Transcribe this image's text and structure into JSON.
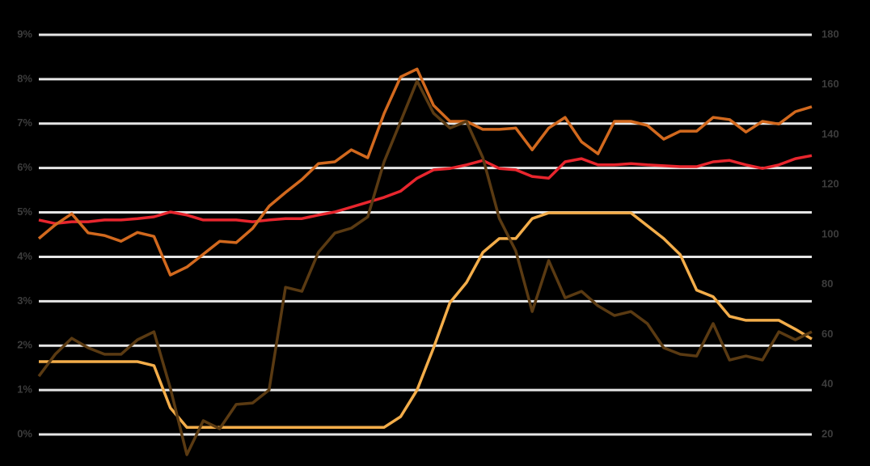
{
  "chart_data": {
    "type": "line",
    "ylim": [
      0,
      9
    ],
    "yticks": [
      {
        "value": 0,
        "label": "0%"
      },
      {
        "value": 1,
        "label": "1%"
      },
      {
        "value": 2,
        "label": "2%"
      },
      {
        "value": 3,
        "label": "3%"
      },
      {
        "value": 4,
        "label": "4%"
      },
      {
        "value": 5,
        "label": "5%"
      },
      {
        "value": 6,
        "label": "6%"
      },
      {
        "value": 7,
        "label": "7%"
      },
      {
        "value": 8,
        "label": "8%"
      },
      {
        "value": 9,
        "label": "9%"
      }
    ],
    "y2lim": [
      20,
      180
    ],
    "y2ticks": [
      20,
      40,
      60,
      80,
      100,
      120,
      140,
      160,
      180
    ],
    "grid": true,
    "series": [
      {
        "color": "#e8262e",
        "values": [
          4.83,
          4.75,
          4.79,
          4.79,
          4.83,
          4.83,
          4.86,
          4.9,
          5.01,
          4.94,
          4.83,
          4.83,
          4.83,
          4.79,
          4.83,
          4.86,
          4.86,
          4.94,
          5.01,
          5.12,
          5.23,
          5.34,
          5.48,
          5.77,
          5.96,
          5.99,
          6.07,
          6.17,
          5.99,
          5.96,
          5.81,
          5.77,
          6.14,
          6.21,
          6.07,
          6.07,
          6.1,
          6.07,
          6.05,
          6.03,
          6.03,
          6.14,
          6.17,
          6.07,
          5.99,
          6.07,
          6.21,
          6.28
        ]
      },
      {
        "color": "#d2691e",
        "values": [
          4.41,
          4.72,
          4.97,
          4.54,
          4.48,
          4.35,
          4.55,
          4.46,
          3.59,
          3.77,
          4.06,
          4.35,
          4.32,
          4.64,
          5.14,
          5.45,
          5.74,
          6.1,
          6.14,
          6.41,
          6.23,
          7.23,
          8.05,
          8.23,
          7.41,
          7.05,
          7.05,
          6.87,
          6.87,
          6.9,
          6.41,
          6.9,
          7.14,
          6.59,
          6.32,
          7.05,
          7.05,
          6.96,
          6.65,
          6.83,
          6.83,
          7.14,
          7.09,
          6.81,
          7.05,
          6.99,
          7.27,
          7.38
        ]
      },
      {
        "color": "#f3ad4a",
        "values": [
          1.64,
          1.64,
          1.64,
          1.64,
          1.64,
          1.64,
          1.64,
          1.55,
          0.6,
          0.16,
          0.16,
          0.16,
          0.16,
          0.16,
          0.16,
          0.16,
          0.16,
          0.16,
          0.16,
          0.16,
          0.16,
          0.16,
          0.4,
          1.0,
          1.95,
          2.97,
          3.42,
          4.1,
          4.41,
          4.41,
          4.86,
          4.99,
          4.99,
          4.99,
          4.99,
          4.99,
          4.99,
          4.7,
          4.41,
          4.05,
          3.25,
          3.1,
          2.66,
          2.57,
          2.57,
          2.57,
          2.37,
          2.15
        ]
      },
      {
        "color": "#5a3a12",
        "axis": "y2",
        "values": [
          43.3,
          52.1,
          58.5,
          54.7,
          52.1,
          52.1,
          57.9,
          61.1,
          38.5,
          11.9,
          25.5,
          22.3,
          32.0,
          32.6,
          37.8,
          78.9,
          77.3,
          92.9,
          100.6,
          102.6,
          107.1,
          129.2,
          145.3,
          161.5,
          148.6,
          142.7,
          145.3,
          130.8,
          106.5,
          93.5,
          69.2,
          89.6,
          74.7,
          77.3,
          71.5,
          67.6,
          69.2,
          64.4,
          54.7,
          52.1,
          51.4,
          64.4,
          49.8,
          51.4,
          49.8,
          61.1,
          57.9,
          61.1
        ]
      }
    ]
  }
}
